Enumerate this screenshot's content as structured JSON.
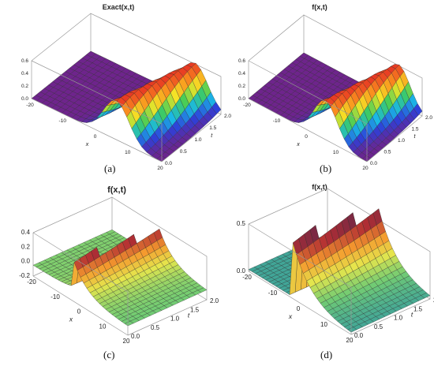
{
  "figure": {
    "panels": [
      {
        "id": "a",
        "label": "(a)",
        "title": "Exact(x,t)",
        "z_ticks": [
          "0.0",
          "0.2",
          "0.4",
          "0.6"
        ],
        "x_ticks": [
          "-20",
          "-10",
          "0",
          "10",
          "20"
        ],
        "t_ticks": [
          "0.0",
          "0.5",
          "1.0",
          "1.5",
          "2.0"
        ],
        "x_label": "x",
        "t_label": "t"
      },
      {
        "id": "b",
        "label": "(b)",
        "title": "f(x,t)",
        "z_ticks": [
          "0.0",
          "0.2",
          "0.4",
          "0.6"
        ],
        "x_ticks": [
          "-20",
          "-10",
          "0",
          "10",
          "20"
        ],
        "t_ticks": [
          "0.0",
          "0.5",
          "1.0",
          "1.5",
          "2.0"
        ],
        "x_label": "x",
        "t_label": "t"
      },
      {
        "id": "c",
        "label": "(c)",
        "title": "f(x,t)",
        "z_ticks": [
          "-0.2",
          "0.0",
          "0.2",
          "0.4"
        ],
        "x_ticks": [
          "-20",
          "-10",
          "0",
          "10",
          "20"
        ],
        "t_ticks": [
          "0.0",
          "0.5",
          "1.0",
          "1.5",
          "2.0"
        ],
        "x_label": "x",
        "t_label": "t"
      },
      {
        "id": "d",
        "label": "(d)",
        "title": "f(x,t)",
        "z_ticks": [
          "0.0",
          "0.5"
        ],
        "x_ticks": [
          "-20",
          "-10",
          "0",
          "10",
          "20"
        ],
        "t_ticks": [
          "0.0",
          "0.5",
          "1.0",
          "1.5",
          "2.0"
        ],
        "x_label": "x",
        "t_label": "t"
      }
    ]
  },
  "chart_data": [
    {
      "type": "surface",
      "title": "Exact(x,t)",
      "xlabel": "x",
      "ylabel": "t",
      "xlim": [
        -20,
        20
      ],
      "tlim": [
        0,
        2
      ],
      "zlim": [
        0,
        0.6
      ],
      "shape": "traveling bell pulse"
    },
    {
      "type": "surface",
      "title": "f(x,t)",
      "xlabel": "x",
      "ylabel": "t",
      "xlim": [
        -20,
        20
      ],
      "tlim": [
        0,
        2
      ],
      "zlim": [
        0,
        0.6
      ],
      "shape": "traveling bell pulse"
    },
    {
      "type": "surface",
      "title": "f(x,t)",
      "xlabel": "x",
      "ylabel": "t",
      "xlim": [
        -20,
        20
      ],
      "tlim": [
        0,
        2
      ],
      "zlim": [
        -0.2,
        0.4
      ],
      "shape": "kink wave"
    },
    {
      "type": "surface",
      "title": "f(x,t)",
      "xlabel": "x",
      "ylabel": "t",
      "xlim": [
        -20,
        20
      ],
      "tlim": [
        0,
        2
      ],
      "zlim": [
        0,
        0.5
      ],
      "shape": "kink wave"
    }
  ]
}
